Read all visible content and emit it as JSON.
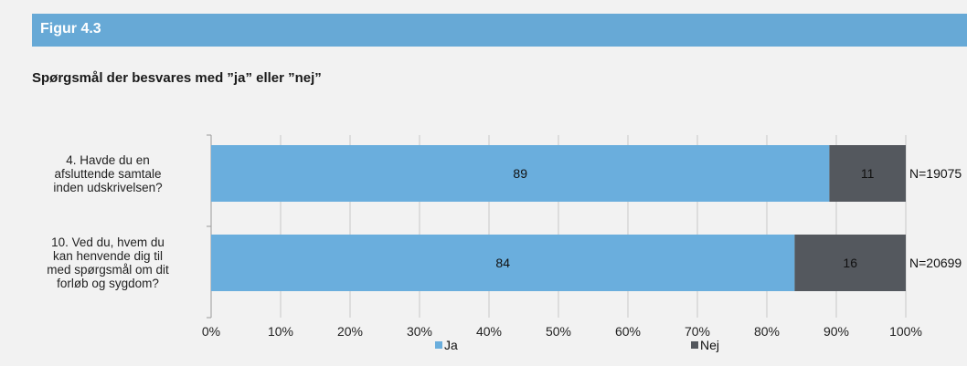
{
  "figure_label": "Figur 4.3",
  "title": "Spørgsmål der besvares med ”ja” eller ”nej”",
  "colors": {
    "header": "#67a9d6",
    "ja": "#6aaedd",
    "nej": "#54585e",
    "background": "#f2f2f2",
    "grid": "#c8c8c8"
  },
  "chart_data": {
    "type": "bar",
    "orientation": "horizontal",
    "stacked": "percent",
    "categories": [
      "4. Havde du en afsluttende samtale inden udskrivelsen?",
      "10. Ved du, hvem du kan henvende dig til med spørgsmål om dit forløb og sygdom?"
    ],
    "category_lines": [
      [
        "4. Havde du en",
        "afsluttende samtale",
        "inden udskrivelsen?"
      ],
      [
        "10. Ved du, hvem du",
        "kan henvende dig til",
        "med spørgsmål om dit",
        "forløb og sygdom?"
      ]
    ],
    "series": [
      {
        "name": "Ja",
        "values": [
          89,
          84
        ],
        "color": "#6aaedd"
      },
      {
        "name": "Nej",
        "values": [
          11,
          16
        ],
        "color": "#54585e"
      }
    ],
    "n_labels": [
      "N=19075",
      "N=20699"
    ],
    "xlim": [
      0,
      100
    ],
    "xticks": [
      "0%",
      "10%",
      "20%",
      "30%",
      "40%",
      "50%",
      "60%",
      "70%",
      "80%",
      "90%",
      "100%"
    ],
    "grid": true,
    "legend_position": "bottom"
  }
}
